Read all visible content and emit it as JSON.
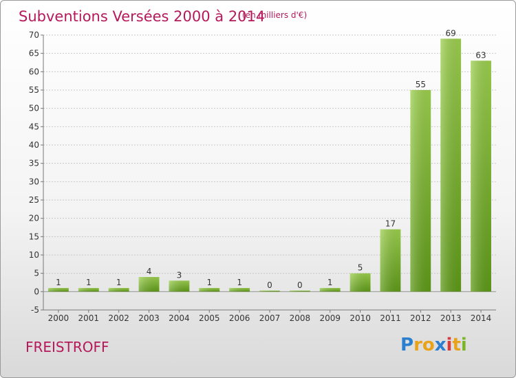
{
  "chart_data": {
    "type": "bar",
    "title": "Subventions Versées 2000 à 2014",
    "subtitle": "(en milliers d'€)",
    "categories": [
      "2000",
      "2001",
      "2002",
      "2003",
      "2004",
      "2005",
      "2006",
      "2007",
      "2008",
      "2009",
      "2010",
      "2011",
      "2012",
      "2013",
      "2014"
    ],
    "values": [
      1,
      1,
      1,
      4,
      3,
      1,
      1,
      0,
      0,
      1,
      5,
      17,
      55,
      69,
      63
    ],
    "ylim": [
      -5,
      70
    ],
    "yticks": [
      -5,
      0,
      5,
      10,
      15,
      20,
      25,
      30,
      35,
      40,
      45,
      50,
      55,
      60,
      65,
      70
    ],
    "grid": true,
    "bar_color": "#7ab52a"
  },
  "footer": {
    "location": "FREISTROFF",
    "logo_letters": [
      "P",
      "r",
      "o",
      "x",
      "i",
      "t",
      "i"
    ],
    "logo_colors": [
      "#2b7fd0",
      "#e8a21b",
      "#e8a21b",
      "#2b7fd0",
      "#d93a3a",
      "#e8a21b",
      "#7ab52a"
    ]
  }
}
